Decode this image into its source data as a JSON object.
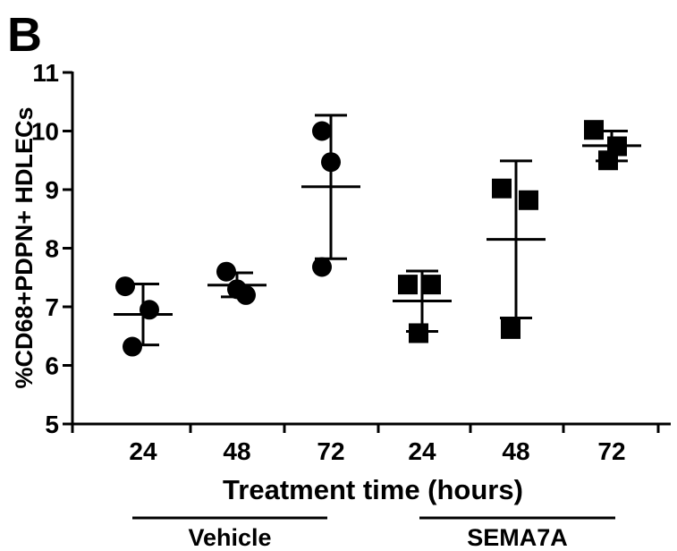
{
  "panel_label": "B",
  "chart_data": {
    "type": "scatter",
    "ylabel": "%CD68+PDPN+ HDLECs",
    "xlabel": "Treatment time (hours)",
    "ylim": [
      5,
      11
    ],
    "yticks": [
      5,
      6,
      7,
      8,
      9,
      10,
      11
    ],
    "categories": [
      "24",
      "48",
      "72",
      "24",
      "48",
      "72"
    ],
    "groups": [
      {
        "name": "Vehicle",
        "category_indices": [
          0,
          1,
          2
        ]
      },
      {
        "name": "SEMA7A",
        "category_indices": [
          3,
          4,
          5
        ]
      }
    ],
    "series": [
      {
        "group": "Vehicle",
        "marker": "circle",
        "points": [
          {
            "category": 0,
            "values": [
              7.35,
              6.95,
              6.32
            ],
            "mean": 6.87,
            "sd_low": 6.35,
            "sd_high": 7.39
          },
          {
            "category": 1,
            "values": [
              7.6,
              7.2,
              7.3
            ],
            "mean": 7.37,
            "sd_low": 7.17,
            "sd_high": 7.58
          },
          {
            "category": 2,
            "values": [
              10.0,
              9.47,
              7.68
            ],
            "mean": 9.05,
            "sd_low": 7.82,
            "sd_high": 10.27
          }
        ]
      },
      {
        "group": "SEMA7A",
        "marker": "square",
        "points": [
          {
            "category": 3,
            "values": [
              7.38,
              7.38,
              6.55
            ],
            "mean": 7.1,
            "sd_low": 6.58,
            "sd_high": 7.61
          },
          {
            "category": 4,
            "values": [
              9.02,
              8.82,
              6.62
            ],
            "mean": 8.15,
            "sd_low": 6.81,
            "sd_high": 9.49
          },
          {
            "category": 5,
            "values": [
              10.02,
              9.74,
              9.5
            ],
            "mean": 9.75,
            "sd_low": 9.49,
            "sd_high": 10.0
          }
        ]
      }
    ]
  }
}
